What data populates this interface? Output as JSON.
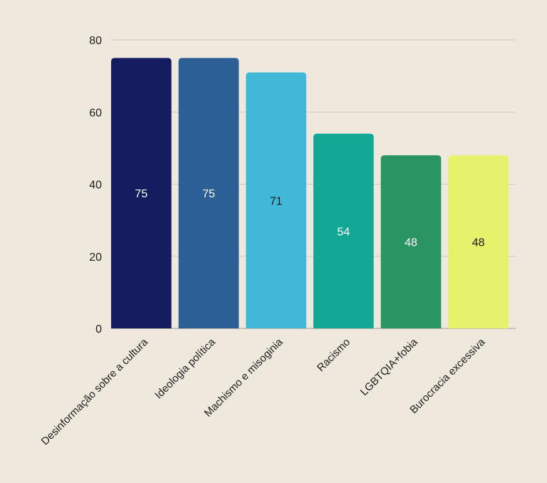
{
  "chart_data": {
    "type": "bar",
    "title": "",
    "xlabel": "",
    "ylabel": "",
    "ylim": [
      0,
      80
    ],
    "yticks": [
      0,
      20,
      40,
      60,
      80
    ],
    "grid": true,
    "categories": [
      "Desinformação sobre a cultura",
      "Ideologia política",
      "Machismo e misoginia",
      "Racismo",
      "LGBTQIA+fobia",
      "Burocracia excessiva"
    ],
    "values": [
      75,
      75,
      71,
      54,
      48,
      48
    ],
    "colors": [
      "#141B5E",
      "#2D5F97",
      "#42B8D8",
      "#13A895",
      "#2A9462",
      "#E6F16C"
    ],
    "label_colors": [
      "#FFFFFF",
      "#FFFFFF",
      "#1A1A1A",
      "#FFFFFF",
      "#FFFFFF",
      "#1A1A1A"
    ]
  }
}
